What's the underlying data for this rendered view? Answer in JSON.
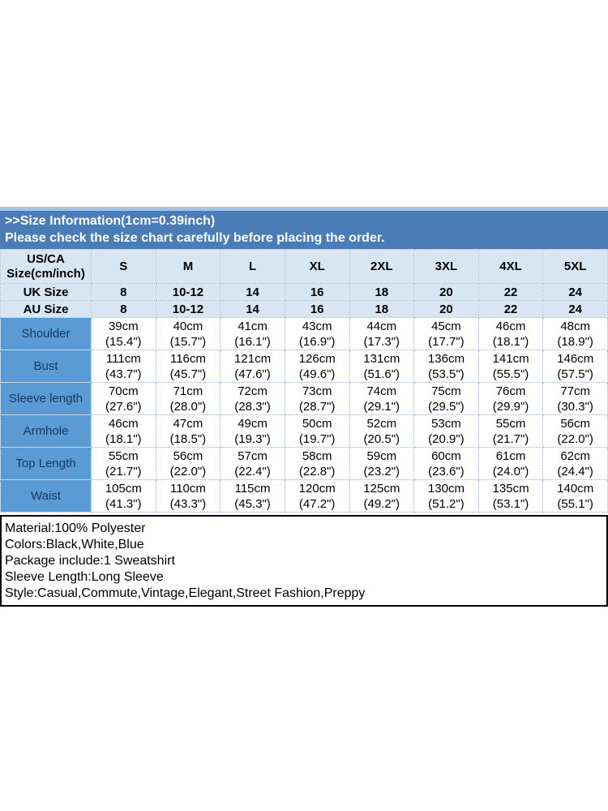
{
  "colors": {
    "header_band": "#4a7cb7",
    "top_strip": "#a6c3e3",
    "light_row": "#d8e6f4",
    "label_column": "#5b9bd5",
    "grid_border": "#8fb3d9",
    "label_text": "#17365d",
    "band_text": "#ffffff",
    "body_text": "#000000"
  },
  "header": {
    "line1": ">>Size Information(1cm=0.39inch)",
    "line2": "Please check the size chart carefully before placing the order."
  },
  "size_table": {
    "corner_label": "US/CA Size(cm/inch)",
    "columns": [
      "S",
      "M",
      "L",
      "XL",
      "2XL",
      "3XL",
      "4XL",
      "5XL"
    ],
    "size_rows": [
      {
        "label": "UK Size",
        "values": [
          "8",
          "10-12",
          "14",
          "16",
          "18",
          "20",
          "22",
          "24"
        ]
      },
      {
        "label": "AU Size",
        "values": [
          "8",
          "10-12",
          "14",
          "16",
          "18",
          "20",
          "22",
          "24"
        ]
      }
    ],
    "measurement_rows": [
      {
        "label": "Shoulder",
        "values": [
          [
            "39cm",
            "(15.4\")"
          ],
          [
            "40cm",
            "(15.7\")"
          ],
          [
            "41cm",
            "(16.1\")"
          ],
          [
            "43cm",
            "(16.9\")"
          ],
          [
            "44cm",
            "(17.3\")"
          ],
          [
            "45cm",
            "(17.7\")"
          ],
          [
            "46cm",
            "(18.1\")"
          ],
          [
            "48cm",
            "(18.9\")"
          ]
        ]
      },
      {
        "label": "Bust",
        "values": [
          [
            "111cm",
            "(43.7\")"
          ],
          [
            "116cm",
            "(45.7\")"
          ],
          [
            "121cm",
            "(47.6\")"
          ],
          [
            "126cm",
            "(49.6\")"
          ],
          [
            "131cm",
            "(51.6\")"
          ],
          [
            "136cm",
            "(53.5\")"
          ],
          [
            "141cm",
            "(55.5\")"
          ],
          [
            "146cm",
            "(57.5\")"
          ]
        ]
      },
      {
        "label": "Sleeve length",
        "values": [
          [
            "70cm",
            "(27.6\")"
          ],
          [
            "71cm",
            "(28.0\")"
          ],
          [
            "72cm",
            "(28.3\")"
          ],
          [
            "73cm",
            "(28.7\")"
          ],
          [
            "74cm",
            "(29.1\")"
          ],
          [
            "75cm",
            "(29.5\")"
          ],
          [
            "76cm",
            "(29.9\")"
          ],
          [
            "77cm",
            "(30.3\")"
          ]
        ]
      },
      {
        "label": "Armhole",
        "values": [
          [
            "46cm",
            "(18.1\")"
          ],
          [
            "47cm",
            "(18.5\")"
          ],
          [
            "49cm",
            "(19.3\")"
          ],
          [
            "50cm",
            "(19.7\")"
          ],
          [
            "52cm",
            "(20.5\")"
          ],
          [
            "53cm",
            "(20.9\")"
          ],
          [
            "55cm",
            "(21.7\")"
          ],
          [
            "56cm",
            "(22.0\")"
          ]
        ]
      },
      {
        "label": "Top Length",
        "values": [
          [
            "55cm",
            "(21.7\")"
          ],
          [
            "56cm",
            "(22.0\")"
          ],
          [
            "57cm",
            "(22.4\")"
          ],
          [
            "58cm",
            "(22.8\")"
          ],
          [
            "59cm",
            "(23.2\")"
          ],
          [
            "60cm",
            "(23.6\")"
          ],
          [
            "61cm",
            "(24.0\")"
          ],
          [
            "62cm",
            "(24.4\")"
          ]
        ]
      },
      {
        "label": "Waist",
        "values": [
          [
            "105cm",
            "(41.3\")"
          ],
          [
            "110cm",
            "(43.3\")"
          ],
          [
            "115cm",
            "(45.3\")"
          ],
          [
            "120cm",
            "(47.2\")"
          ],
          [
            "125cm",
            "(49.2\")"
          ],
          [
            "130cm",
            "(51.2\")"
          ],
          [
            "135cm",
            "(53.1\")"
          ],
          [
            "140cm",
            "(55.1\")"
          ]
        ]
      }
    ]
  },
  "footer": {
    "lines": [
      "Material:100% Polyester",
      "Colors:Black,White,Blue",
      "Package include:1 Sweatshirt",
      "Sleeve Length:Long Sleeve",
      "Style:Casual,Commute,Vintage,Elegant,Street Fashion,Preppy"
    ]
  }
}
